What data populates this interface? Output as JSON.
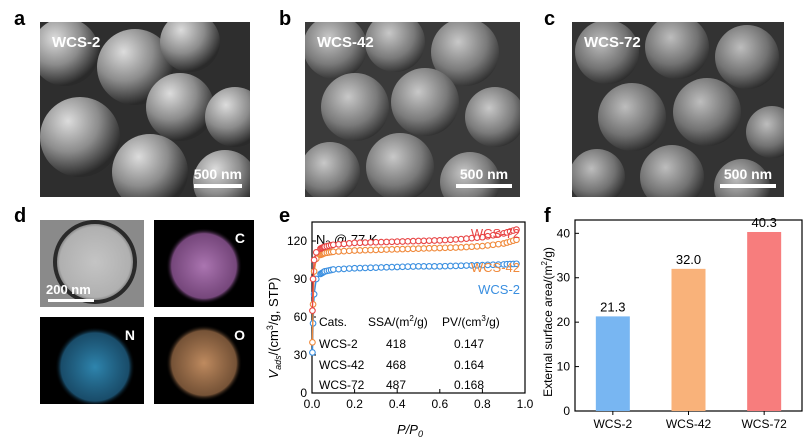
{
  "panels": {
    "a": "a",
    "b": "b",
    "c": "c",
    "d": "d",
    "e": "e",
    "f": "f"
  },
  "sem": [
    {
      "label": "WCS-2",
      "scale": "500 nm"
    },
    {
      "label": "WCS-42",
      "scale": "500 nm"
    },
    {
      "label": "WCS-72",
      "scale": "500 nm"
    }
  ],
  "tem": {
    "scale": "200 nm"
  },
  "eds": {
    "c": "C",
    "n": "N",
    "o": "O"
  },
  "colors": {
    "wcs2": "#3a8fe0",
    "wcs42": "#f08a3c",
    "wcs72": "#e84545",
    "bar2": "#78b6f2",
    "bar42": "#f9b27a",
    "bar72": "#f77d7d",
    "carbon": "#c98ad0",
    "nitrogen": "#3aa6d9",
    "oxygen": "#d49a6a"
  },
  "chart_data": [
    {
      "type": "line",
      "annotation": "N2 @ 77 K",
      "xlabel": "P/P0",
      "ylabel": "Vads/(cm3/g, STP)",
      "xlim": [
        0,
        1.0
      ],
      "ylim": [
        0,
        135
      ],
      "xticks": [
        "0.0",
        "0.2",
        "0.4",
        "0.6",
        "0.8",
        "1.0"
      ],
      "yticks": [
        "0",
        "30",
        "60",
        "90",
        "120"
      ],
      "series": [
        {
          "name": "WCS-2",
          "x": [
            0.002,
            0.005,
            0.01,
            0.02,
            0.04,
            0.06,
            0.1,
            0.2,
            0.3,
            0.4,
            0.5,
            0.6,
            0.7,
            0.8,
            0.9,
            0.96
          ],
          "y": [
            32,
            55,
            78,
            90,
            94,
            96,
            97.5,
            98.5,
            99,
            99.5,
            100,
            100,
            100.5,
            101,
            101.5,
            102
          ]
        },
        {
          "name": "WCS-42",
          "x": [
            0.002,
            0.005,
            0.01,
            0.02,
            0.04,
            0.06,
            0.1,
            0.2,
            0.3,
            0.4,
            0.5,
            0.6,
            0.7,
            0.8,
            0.9,
            0.96
          ],
          "y": [
            40,
            70,
            96,
            106,
            109,
            110.5,
            111.5,
            112.5,
            113,
            113.5,
            114,
            114.5,
            115,
            116,
            118,
            121
          ]
        },
        {
          "name": "WCS-72",
          "x": [
            0.002,
            0.005,
            0.01,
            0.02,
            0.04,
            0.06,
            0.1,
            0.2,
            0.3,
            0.4,
            0.5,
            0.6,
            0.7,
            0.8,
            0.9,
            0.96
          ],
          "y": [
            65,
            90,
            105,
            111,
            114,
            115.5,
            117,
            118.5,
            119,
            119.5,
            120,
            120.5,
            121.5,
            123,
            126,
            129
          ]
        }
      ],
      "table": {
        "headers": [
          "Cats.",
          "SSA/(m2/g)",
          "PV/(cm3/g)"
        ],
        "rows": [
          [
            "WCS-2",
            "418",
            "0.147"
          ],
          [
            "WCS-42",
            "468",
            "0.164"
          ],
          [
            "WCS-72",
            "487",
            "0.168"
          ]
        ]
      }
    },
    {
      "type": "bar",
      "categories": [
        "WCS-2",
        "WCS-42",
        "WCS-72"
      ],
      "values": [
        21.3,
        32.0,
        40.3
      ],
      "labels": [
        "21.3",
        "32.0",
        "40.3"
      ],
      "ylabel": "External surface area/(m2/g)",
      "ylim": [
        0,
        43
      ],
      "yticks": [
        "0",
        "10",
        "20",
        "30",
        "40"
      ]
    }
  ]
}
